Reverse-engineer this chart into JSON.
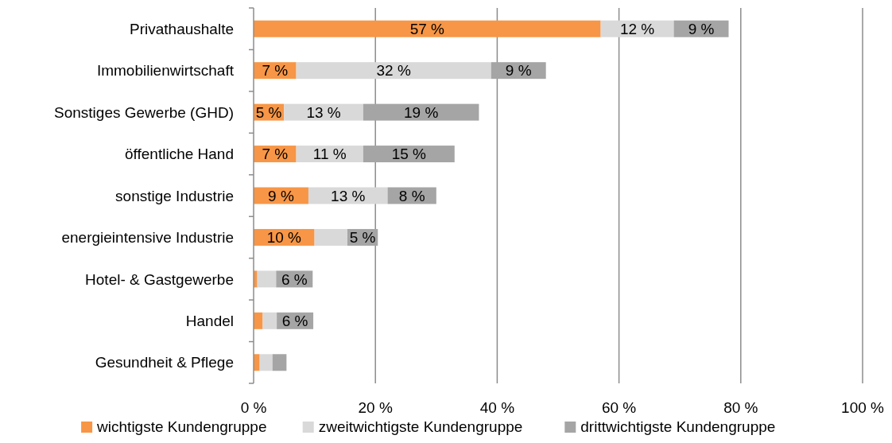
{
  "chart_data": {
    "type": "bar",
    "orientation": "horizontal",
    "stacked": true,
    "categories": [
      "Privathaushalte",
      "Immobilienwirtschaft",
      "Sonstiges Gewerbe (GHD)",
      "öffentliche Hand",
      "sonstige Industrie",
      "energieintensive Industrie",
      "Hotel- & Gastgewerbe",
      "Handel",
      "Gesundheit & Pflege"
    ],
    "series": [
      {
        "name": "wichtigste Kundengruppe",
        "color": "#f79646",
        "values": [
          57,
          7,
          5,
          7,
          9,
          10,
          0.6,
          1.5,
          1.0
        ],
        "value_labels": [
          "57 %",
          "7 %",
          "5 %",
          "7 %",
          "9 %",
          "10 %",
          null,
          null,
          null
        ]
      },
      {
        "name": "zweitwichtigste Kundengruppe",
        "color": "#d9d9d9",
        "values": [
          12,
          32,
          13,
          11,
          13,
          5.4,
          3.1,
          2.3,
          2.1
        ],
        "value_labels": [
          "12 %",
          "32 %",
          "13 %",
          "11 %",
          "13 %",
          null,
          null,
          null,
          null
        ]
      },
      {
        "name": "drittwichtigste Kundengruppe",
        "color": "#a5a5a5",
        "values": [
          9,
          9,
          19,
          15,
          8,
          5,
          6,
          6,
          2.3
        ],
        "value_labels": [
          "9 %",
          "9 %",
          "19 %",
          "15 %",
          "8 %",
          "5 %",
          "6 %",
          "6 %",
          null
        ]
      }
    ],
    "xlim": [
      0,
      100
    ],
    "xticks": [
      {
        "value": 0,
        "label": "0 %"
      },
      {
        "value": 20,
        "label": "20 %"
      },
      {
        "value": 40,
        "label": "40 %"
      },
      {
        "value": 60,
        "label": "60 %"
      },
      {
        "value": 80,
        "label": "80 %"
      },
      {
        "value": 100,
        "label": "100 %"
      }
    ],
    "grid": "x",
    "legend": "bottom"
  }
}
